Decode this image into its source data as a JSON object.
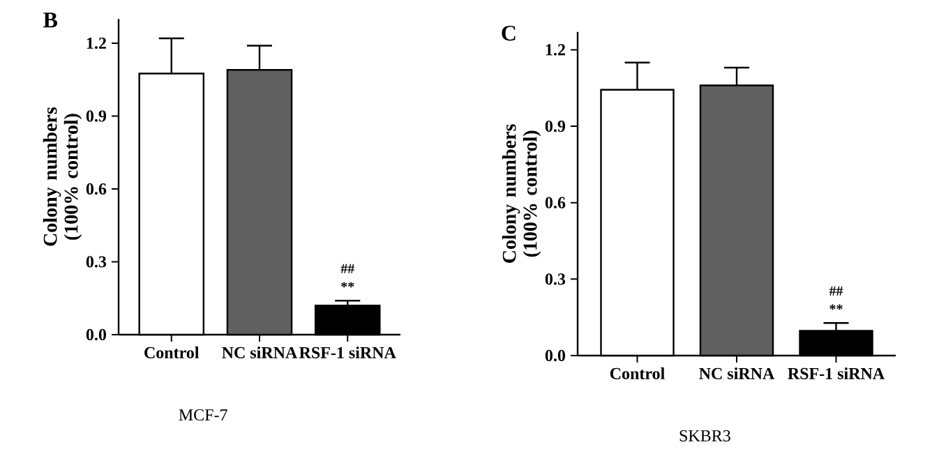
{
  "chart_data": [
    {
      "type": "bar",
      "title": "B",
      "xlabel": "MCF-7",
      "ylabel": "Colony numbers (100% control)",
      "categories": [
        "Control",
        "NC siRNA",
        "RSF-1 siRNA"
      ],
      "values": [
        1.075,
        1.09,
        0.12
      ],
      "colors": [
        "#ffffff",
        "#606060",
        "#000000"
      ],
      "errors": [
        [
          1.075,
          1.22
        ],
        [
          1.09,
          1.19
        ],
        [
          0.12,
          0.14
        ]
      ],
      "ylim": [
        0,
        1.3
      ],
      "yticks": [
        {
          "value": 0,
          "label": "0.0"
        },
        0.3,
        0.6,
        0.9,
        1.2
      ],
      "annotations": [
        "##",
        "**"
      ]
    },
    {
      "type": "bar",
      "title": "C",
      "xlabel": "SKBR3",
      "ylabel": "Colony numbers (100% control)",
      "categories": [
        "Control",
        "NC siRNA",
        "RSF-1 siRNA"
      ],
      "values": [
        1.043,
        1.06,
        0.097
      ],
      "colors": [
        "#ffffff",
        "#606060",
        "#000000"
      ],
      "errors": [
        [
          1.043,
          1.15
        ],
        [
          1.06,
          1.13
        ],
        [
          0.097,
          0.128
        ]
      ],
      "ylim": [
        0,
        1.27
      ],
      "yticks": [
        {
          "value": 0,
          "label": "0.0"
        },
        0.3,
        0.6,
        0.9,
        1.2
      ],
      "annotations": [
        "##",
        "**"
      ]
    }
  ]
}
